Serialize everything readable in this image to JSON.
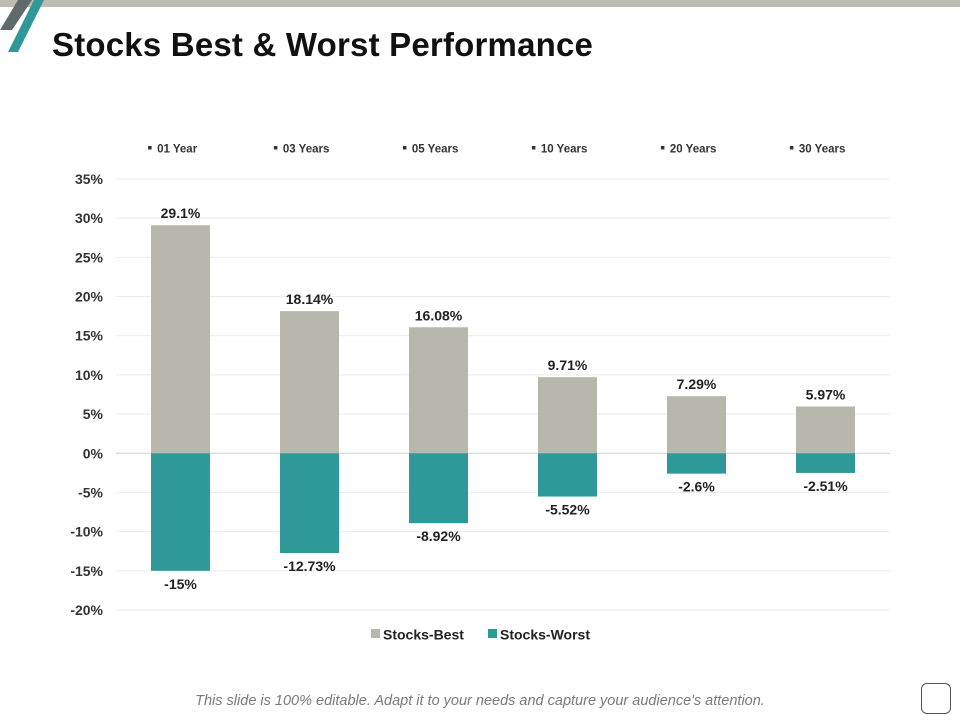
{
  "slide": {
    "title": "Stocks Best & Worst Performance",
    "footer": "This slide is 100% editable. Adapt it to your needs and capture your audience's attention."
  },
  "colors": {
    "best": "#b7b7ab",
    "worst": "#2f9999",
    "accent_dark": "#5f6a6a",
    "accent_teal": "#2f9999"
  },
  "chart_data": {
    "type": "bar",
    "stacked": true,
    "categories": [
      "01 Year",
      "03 Years",
      "05 Years",
      "10 Years",
      "20 Years",
      "30 Years"
    ],
    "series": [
      {
        "name": "Stocks-Best",
        "values": [
          29.1,
          18.14,
          16.08,
          9.71,
          7.29,
          5.97
        ],
        "labels": [
          "29.1%",
          "18.14%",
          "16.08%",
          "9.71%",
          "7.29%",
          "5.97%"
        ]
      },
      {
        "name": "Stocks-Worst",
        "values": [
          -15,
          -12.73,
          -8.92,
          -5.52,
          -2.6,
          -2.51
        ],
        "labels": [
          "-15%",
          "-12.73%",
          "-8.92%",
          "-5.52%",
          "-2.6%",
          "-2.51%"
        ]
      }
    ],
    "ylim": [
      -20,
      35
    ],
    "yticks": [
      35,
      30,
      25,
      20,
      15,
      10,
      5,
      0,
      -5,
      -10,
      -15,
      -20
    ],
    "ytick_labels": [
      "35%",
      "30%",
      "25%",
      "20%",
      "15%",
      "10%",
      "5%",
      "0%",
      "-5%",
      "-10%",
      "-15%",
      "-20%"
    ],
    "category_axis_position": "top",
    "legend_position": "bottom",
    "grid": true
  }
}
